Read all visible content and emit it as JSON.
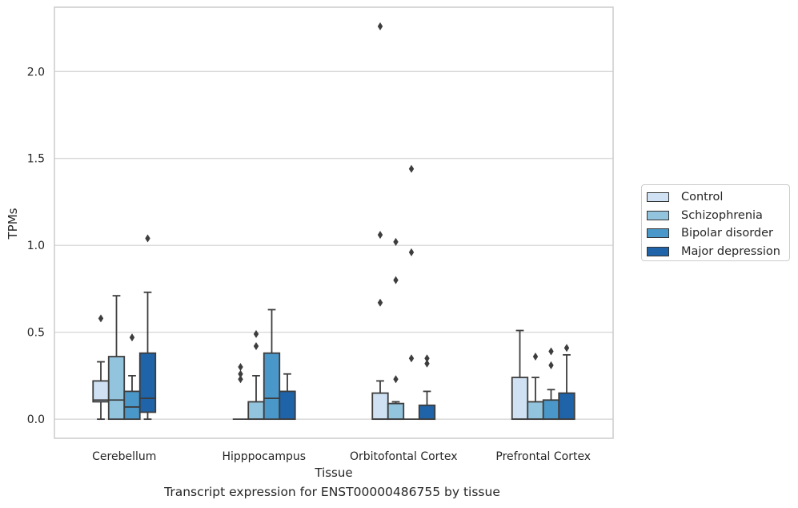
{
  "chart_data": {
    "type": "boxplot",
    "xlabel": "Tissue",
    "ylabel": "TPMs",
    "caption": "Transcript expression for ENST00000486755 by tissue",
    "ylim": [
      -0.11,
      2.37
    ],
    "yticks": [
      0.0,
      0.5,
      1.0,
      1.5,
      2.0
    ],
    "ytick_labels": [
      "0.0",
      "0.5",
      "1.0",
      "1.5",
      "2.0"
    ],
    "grid": "horizontal",
    "legend_position": "right",
    "categories": [
      "Cerebellum",
      "Hipppocampus",
      "Orbitofontal Cortex",
      "Prefrontal Cortex"
    ],
    "series": [
      {
        "name": "Control",
        "color": "#cfe1f2",
        "boxes": [
          {
            "q1": 0.1,
            "median": 0.11,
            "q3": 0.22,
            "whisker_low": 0.0,
            "whisker_high": 0.33,
            "outliers": [
              0.58
            ]
          },
          {
            "q1": 0.0,
            "median": 0.0,
            "q3": 0.0,
            "whisker_low": 0.0,
            "whisker_high": 0.0,
            "outliers": [
              0.23,
              0.26,
              0.3
            ]
          },
          {
            "q1": 0.0,
            "median": 0.0,
            "q3": 0.15,
            "whisker_low": 0.0,
            "whisker_high": 0.22,
            "outliers": [
              0.67,
              1.06,
              2.26
            ]
          },
          {
            "q1": 0.0,
            "median": 0.0,
            "q3": 0.24,
            "whisker_low": 0.0,
            "whisker_high": 0.51,
            "outliers": []
          }
        ]
      },
      {
        "name": "Schizophrenia",
        "color": "#93c4de",
        "boxes": [
          {
            "q1": 0.0,
            "median": 0.11,
            "q3": 0.36,
            "whisker_low": 0.0,
            "whisker_high": 0.71,
            "outliers": []
          },
          {
            "q1": 0.0,
            "median": 0.0,
            "q3": 0.1,
            "whisker_low": 0.0,
            "whisker_high": 0.25,
            "outliers": [
              0.42,
              0.49
            ]
          },
          {
            "q1": 0.0,
            "median": 0.0,
            "q3": 0.09,
            "whisker_low": 0.0,
            "whisker_high": 0.1,
            "outliers": [
              0.23,
              0.8,
              1.02
            ]
          },
          {
            "q1": 0.0,
            "median": 0.0,
            "q3": 0.1,
            "whisker_low": 0.0,
            "whisker_high": 0.24,
            "outliers": [
              0.36
            ]
          }
        ]
      },
      {
        "name": "Bipolar disorder",
        "color": "#4a98c9",
        "boxes": [
          {
            "q1": 0.0,
            "median": 0.07,
            "q3": 0.16,
            "whisker_low": 0.0,
            "whisker_high": 0.25,
            "outliers": [
              0.47
            ]
          },
          {
            "q1": 0.0,
            "median": 0.12,
            "q3": 0.38,
            "whisker_low": 0.0,
            "whisker_high": 0.63,
            "outliers": []
          },
          {
            "q1": 0.0,
            "median": 0.0,
            "q3": 0.0,
            "whisker_low": 0.0,
            "whisker_high": 0.0,
            "outliers": [
              0.35,
              0.96,
              1.44
            ]
          },
          {
            "q1": 0.0,
            "median": 0.0,
            "q3": 0.11,
            "whisker_low": 0.0,
            "whisker_high": 0.17,
            "outliers": [
              0.31,
              0.39
            ]
          }
        ]
      },
      {
        "name": "Major depression",
        "color": "#1f63a8",
        "boxes": [
          {
            "q1": 0.04,
            "median": 0.12,
            "q3": 0.38,
            "whisker_low": 0.0,
            "whisker_high": 0.73,
            "outliers": [
              1.04
            ]
          },
          {
            "q1": 0.0,
            "median": 0.0,
            "q3": 0.16,
            "whisker_low": 0.0,
            "whisker_high": 0.26,
            "outliers": []
          },
          {
            "q1": 0.0,
            "median": 0.0,
            "q3": 0.08,
            "whisker_low": 0.0,
            "whisker_high": 0.16,
            "outliers": [
              0.32,
              0.35
            ]
          },
          {
            "q1": 0.0,
            "median": 0.0,
            "q3": 0.15,
            "whisker_low": 0.0,
            "whisker_high": 0.37,
            "outliers": [
              0.41
            ]
          }
        ]
      }
    ]
  }
}
